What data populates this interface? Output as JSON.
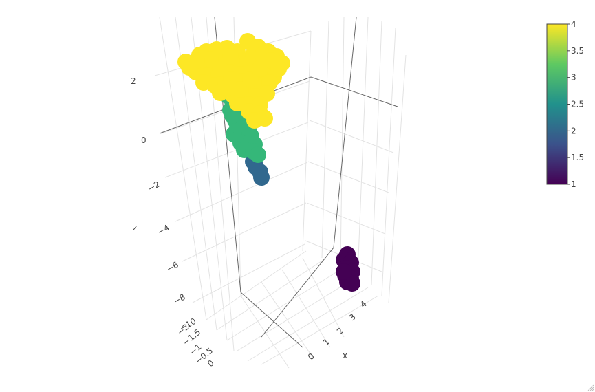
{
  "chart_data": {
    "type": "scatter",
    "scene": "3d",
    "axis_titles": {
      "x": "x",
      "z": "z"
    },
    "z_ticks": [
      "2",
      "0",
      "−2",
      "−4",
      "−6",
      "−8",
      "−10"
    ],
    "x_ticks": [
      "0",
      "1",
      "2",
      "3",
      "4"
    ],
    "y_ticks": [
      "−2",
      "−1.5",
      "−1",
      "−0.5",
      "0"
    ],
    "colorbar": {
      "min": 1,
      "max": 4,
      "ticks": [
        "4",
        "3.5",
        "3",
        "2.5",
        "2",
        "1.5",
        "1"
      ],
      "colorscale": [
        "#440154",
        "#3b528b",
        "#21918c",
        "#5ec962",
        "#fde725"
      ]
    },
    "groups": [
      {
        "value": 4,
        "color": "#fde725",
        "approx_points": 60
      },
      {
        "value": 3,
        "color": "#35b779",
        "approx_points": 20
      },
      {
        "value": 2,
        "color": "#31688e",
        "approx_points": 4
      },
      {
        "value": 1,
        "color": "#440154",
        "approx_points": 10
      }
    ],
    "grid": true,
    "legend": "colorbar-right"
  }
}
